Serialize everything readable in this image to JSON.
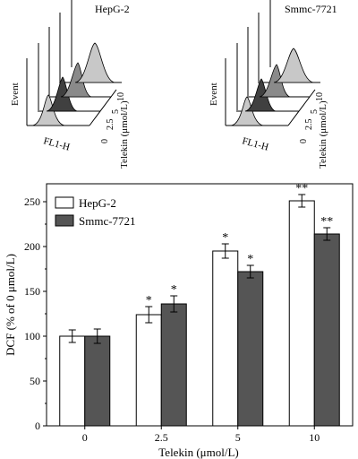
{
  "colors": {
    "hepg2_bar": "#ffffff",
    "smmc_bar": "#555555",
    "hist_peak_light": "#c8c8c8",
    "hist_peak_dark": "#404040",
    "hist_peak_mid": "#8a8a8a"
  },
  "flow_panels": [
    {
      "title": "HepG-2",
      "y_label": "Event",
      "x_label": "FL1-H",
      "z_label": "Telekin (μmol/L)",
      "z_ticks": [
        "0",
        "2.5",
        "5",
        "10"
      ]
    },
    {
      "title": "Smmc-7721",
      "y_label": "Event",
      "x_label": "FL1-H",
      "z_label": "Telekin (μmol/L)",
      "z_ticks": [
        "0",
        "2.5",
        "5",
        "10"
      ]
    }
  ],
  "chart_data": {
    "type": "bar",
    "categories": [
      "0",
      "2.5",
      "5",
      "10"
    ],
    "xlabel": "Telekin (μmol/L)",
    "ylabel": "DCF (% of 0 μmol/L)",
    "ylim": [
      0,
      270
    ],
    "yticks": [
      0,
      50,
      100,
      150,
      200,
      250
    ],
    "legend_position": "top-left",
    "series": [
      {
        "name": "HepG-2",
        "values": [
          100,
          124,
          195,
          251
        ],
        "errors": [
          7,
          9,
          8,
          7
        ],
        "significance": [
          "",
          "*",
          "*",
          "**"
        ]
      },
      {
        "name": "Smmc-7721",
        "values": [
          100,
          136,
          172,
          214
        ],
        "errors": [
          8,
          9,
          7,
          7
        ],
        "significance": [
          "",
          "*",
          "*",
          "**"
        ]
      }
    ]
  }
}
